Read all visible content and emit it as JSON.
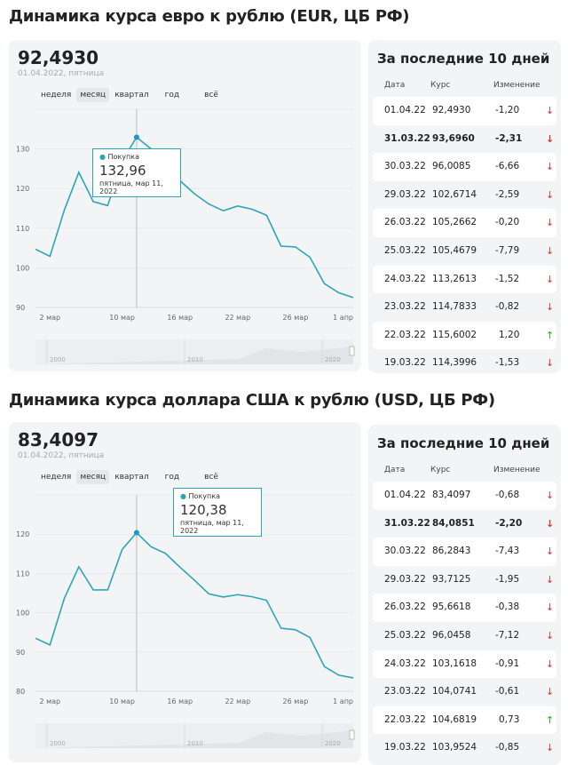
{
  "colors": {
    "line": "#2aa6b8",
    "down": "#dd3333",
    "up": "#22aa22"
  },
  "tabs": [
    "неделя",
    "месяц",
    "квартал",
    "год",
    "всё"
  ],
  "panel_title": "За последние 10 дней",
  "table_headers": [
    "Дата",
    "Курс",
    "Изменение"
  ],
  "nav_years": [
    "2000",
    "2010",
    "2020"
  ],
  "x_labels": [
    "2 мар",
    "10 мар",
    "16 мар",
    "22 мар",
    "26 мар",
    "1 апр"
  ],
  "x_label_index": [
    1,
    6,
    10,
    14,
    18,
    22
  ],
  "eur": {
    "title": "Динамика курса евро к рублю (EUR, ЦБ РФ)",
    "value": "92,4930",
    "date": "01.04.2022, пятница",
    "tooltip": {
      "label": "Покупка",
      "value": "132,96",
      "date": "пятница, мар 11, 2022"
    },
    "chart_data": {
      "type": "line",
      "y_ticks": [
        "90",
        "100",
        "110",
        "120",
        "130"
      ],
      "ylim": [
        90,
        140
      ],
      "highlight_index": 7,
      "values": [
        104.7,
        102.9,
        114.6,
        124.1,
        116.7,
        115.7,
        127.0,
        132.96,
        130.0,
        126.6,
        122.0,
        118.7,
        116.1,
        114.4,
        115.6,
        114.78,
        113.26,
        105.47,
        105.27,
        102.67,
        96.01,
        93.7,
        92.49
      ]
    },
    "rows": [
      {
        "date": "01.04.22",
        "rate": "92,4930",
        "change": "-1,20",
        "dir": "down"
      },
      {
        "date": "31.03.22",
        "rate": "93,6960",
        "change": "-2,31",
        "dir": "down",
        "bold": true
      },
      {
        "date": "30.03.22",
        "rate": "96,0085",
        "change": "-6,66",
        "dir": "down"
      },
      {
        "date": "29.03.22",
        "rate": "102,6714",
        "change": "-2,59",
        "dir": "down"
      },
      {
        "date": "26.03.22",
        "rate": "105,2662",
        "change": "-0,20",
        "dir": "down"
      },
      {
        "date": "25.03.22",
        "rate": "105,4679",
        "change": "-7,79",
        "dir": "down"
      },
      {
        "date": "24.03.22",
        "rate": "113,2613",
        "change": "-1,52",
        "dir": "down"
      },
      {
        "date": "23.03.22",
        "rate": "114,7833",
        "change": "-0,82",
        "dir": "down"
      },
      {
        "date": "22.03.22",
        "rate": "115,6002",
        "change": "1,20",
        "dir": "up"
      },
      {
        "date": "19.03.22",
        "rate": "114,3996",
        "change": "-1,53",
        "dir": "down"
      }
    ]
  },
  "usd": {
    "title": "Динамика курса доллара США к рублю (USD, ЦБ РФ)",
    "value": "83,4097",
    "date": "01.04.2022, пятница",
    "tooltip": {
      "label": "Покупка",
      "value": "120,38",
      "date": "пятница, мар 11, 2022"
    },
    "chart_data": {
      "type": "line",
      "y_ticks": [
        "80",
        "90",
        "100",
        "110",
        "120"
      ],
      "ylim": [
        80,
        130
      ],
      "highlight_index": 7,
      "values": [
        93.5,
        91.8,
        103.7,
        111.7,
        105.8,
        105.8,
        116.1,
        120.38,
        116.8,
        115.1,
        111.6,
        108.3,
        104.8,
        104.0,
        104.6,
        104.07,
        103.16,
        96.05,
        95.66,
        93.71,
        86.28,
        84.09,
        83.41
      ]
    },
    "rows": [
      {
        "date": "01.04.22",
        "rate": "83,4097",
        "change": "-0,68",
        "dir": "down"
      },
      {
        "date": "31.03.22",
        "rate": "84,0851",
        "change": "-2,20",
        "dir": "down",
        "bold": true
      },
      {
        "date": "30.03.22",
        "rate": "86,2843",
        "change": "-7,43",
        "dir": "down"
      },
      {
        "date": "29.03.22",
        "rate": "93,7125",
        "change": "-1,95",
        "dir": "down"
      },
      {
        "date": "26.03.22",
        "rate": "95,6618",
        "change": "-0,38",
        "dir": "down"
      },
      {
        "date": "25.03.22",
        "rate": "96,0458",
        "change": "-7,12",
        "dir": "down"
      },
      {
        "date": "24.03.22",
        "rate": "103,1618",
        "change": "-0,91",
        "dir": "down"
      },
      {
        "date": "23.03.22",
        "rate": "104,0741",
        "change": "-0,61",
        "dir": "down"
      },
      {
        "date": "22.03.22",
        "rate": "104,6819",
        "change": "0,73",
        "dir": "up"
      },
      {
        "date": "19.03.22",
        "rate": "103,9524",
        "change": "-0,85",
        "dir": "down"
      }
    ]
  }
}
